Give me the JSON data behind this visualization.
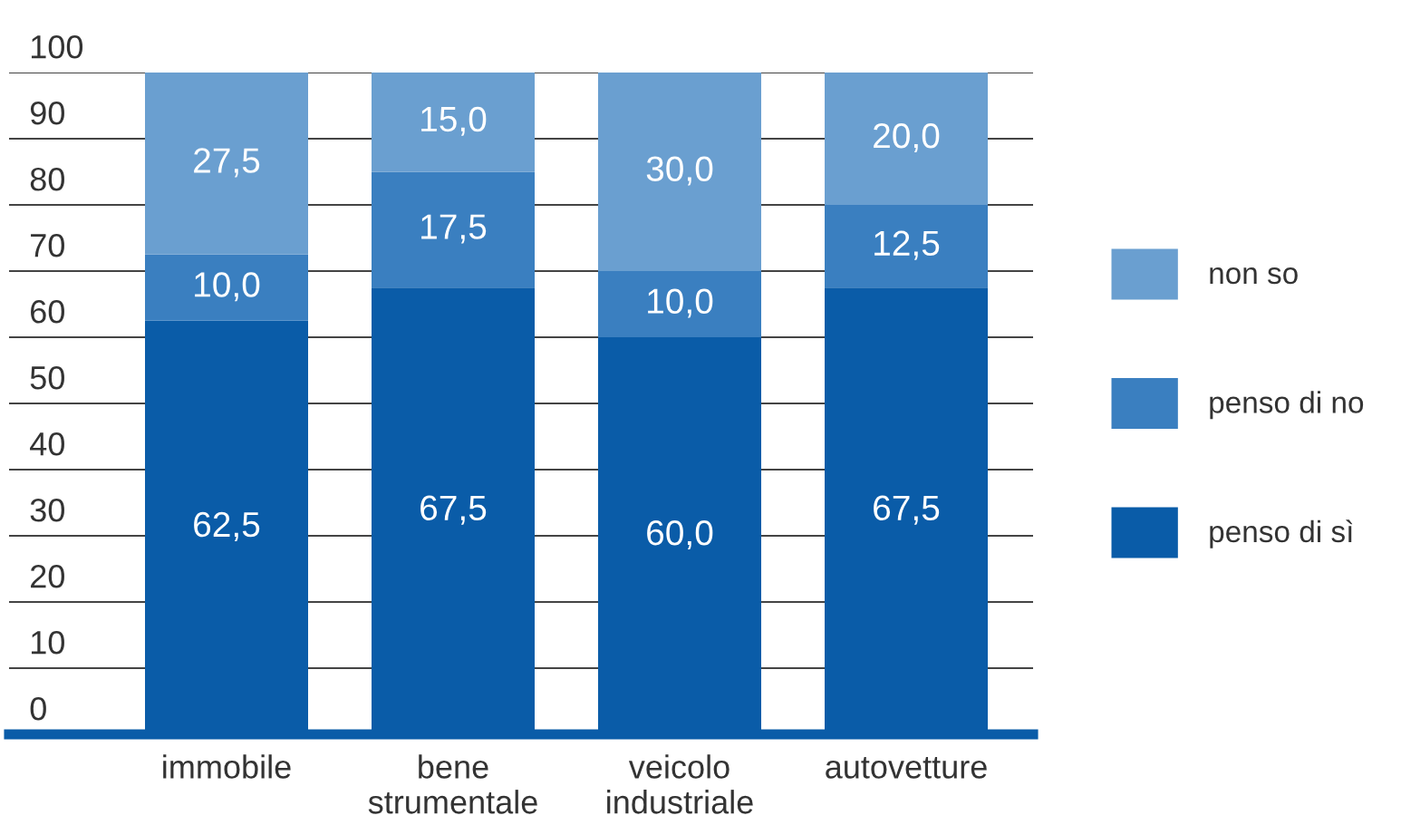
{
  "chart_data": {
    "type": "bar",
    "stacked": true,
    "categories": [
      "immobile",
      "bene\nstrumentale",
      "veicolo\nindustriale",
      "autovetture"
    ],
    "series": [
      {
        "name": "penso di sì",
        "color": "#0a5ca8",
        "values": [
          62.5,
          67.5,
          60.0,
          67.5
        ],
        "value_labels": [
          "62,5",
          "67,5",
          "60,0",
          "67,5"
        ]
      },
      {
        "name": "penso di no",
        "color": "#3a7fc0",
        "values": [
          10.0,
          17.5,
          10.0,
          12.5
        ],
        "value_labels": [
          "10,0",
          "17,5",
          "10,0",
          "12,5"
        ]
      },
      {
        "name": "non so",
        "color": "#6a9fd0",
        "values": [
          27.5,
          15.0,
          30.0,
          20.0
        ],
        "value_labels": [
          "27,5",
          "15,0",
          "30,0",
          "20,0"
        ]
      }
    ],
    "ylim": [
      0,
      100
    ],
    "yticks": [
      0,
      10,
      20,
      30,
      40,
      50,
      60,
      70,
      80,
      90,
      100
    ],
    "grid": "y",
    "legend": "right"
  }
}
